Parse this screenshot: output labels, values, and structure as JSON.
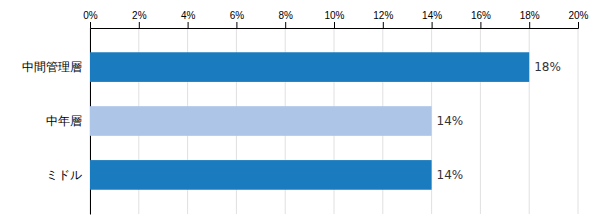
{
  "chart_data": {
    "type": "bar",
    "orientation": "horizontal",
    "categories": [
      "中間管理層",
      "中年層",
      "ミドル"
    ],
    "values": [
      18,
      14,
      14
    ],
    "value_labels": [
      "18%",
      "14%",
      "14%"
    ],
    "colors": [
      "#1b7bbf",
      "#adc6e8",
      "#1b7bbf"
    ],
    "xlim": [
      0,
      20
    ],
    "xticks": [
      {
        "value": 0,
        "label": "0%"
      },
      {
        "value": 2,
        "label": "2%"
      },
      {
        "value": 4,
        "label": "4%"
      },
      {
        "value": 6,
        "label": "6%"
      },
      {
        "value": 8,
        "label": "8%"
      },
      {
        "value": 10,
        "label": "10%"
      },
      {
        "value": 12,
        "label": "12%"
      },
      {
        "value": 14,
        "label": "14%"
      },
      {
        "value": 16,
        "label": "16%"
      },
      {
        "value": 18,
        "label": "18%"
      },
      {
        "value": 20,
        "label": "20%"
      }
    ],
    "grid": true,
    "data_labels": true
  }
}
